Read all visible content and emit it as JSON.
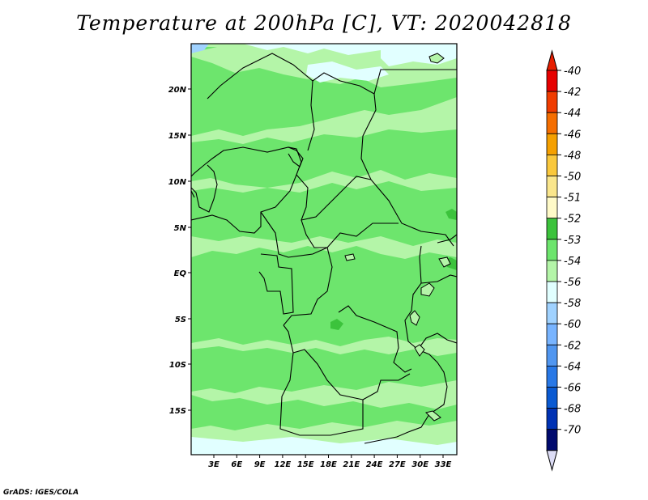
{
  "title": "Temperature at 200hPa [C], VT: 2020042818",
  "credit": "GrADS: IGES/COLA",
  "map": {
    "lat_labels": [
      "20N",
      "15N",
      "10N",
      "5N",
      "EQ",
      "5S",
      "10S",
      "15S"
    ],
    "lon_labels": [
      "3E",
      "6E",
      "9E",
      "12E",
      "15E",
      "18E",
      "21E",
      "24E",
      "27E",
      "30E",
      "33E"
    ],
    "colors": {
      "c52": "#3cc33c",
      "c53": "#6de56d",
      "c54": "#b4f5a8",
      "c56": "#e1ffff",
      "c58": "#a0d2ff"
    }
  },
  "colorbar": {
    "labels": [
      "-40",
      "-42",
      "-44",
      "-46",
      "-48",
      "-50",
      "-51",
      "-52",
      "-53",
      "-54",
      "-56",
      "-58",
      "-60",
      "-62",
      "-64",
      "-66",
      "-68",
      "-70"
    ],
    "colors": [
      "#e60000",
      "#f03c00",
      "#f56e00",
      "#f5a000",
      "#fac83c",
      "#fae68c",
      "#fffac8",
      "#3cc33c",
      "#6de56d",
      "#b4f5a8",
      "#e1ffff",
      "#a0d2ff",
      "#78b4ff",
      "#5096f0",
      "#2878e6",
      "#0a5ad2",
      "#0032b4",
      "#000a6e"
    ],
    "over_color": "#e61e00",
    "under_color": "#dcdcf5"
  }
}
